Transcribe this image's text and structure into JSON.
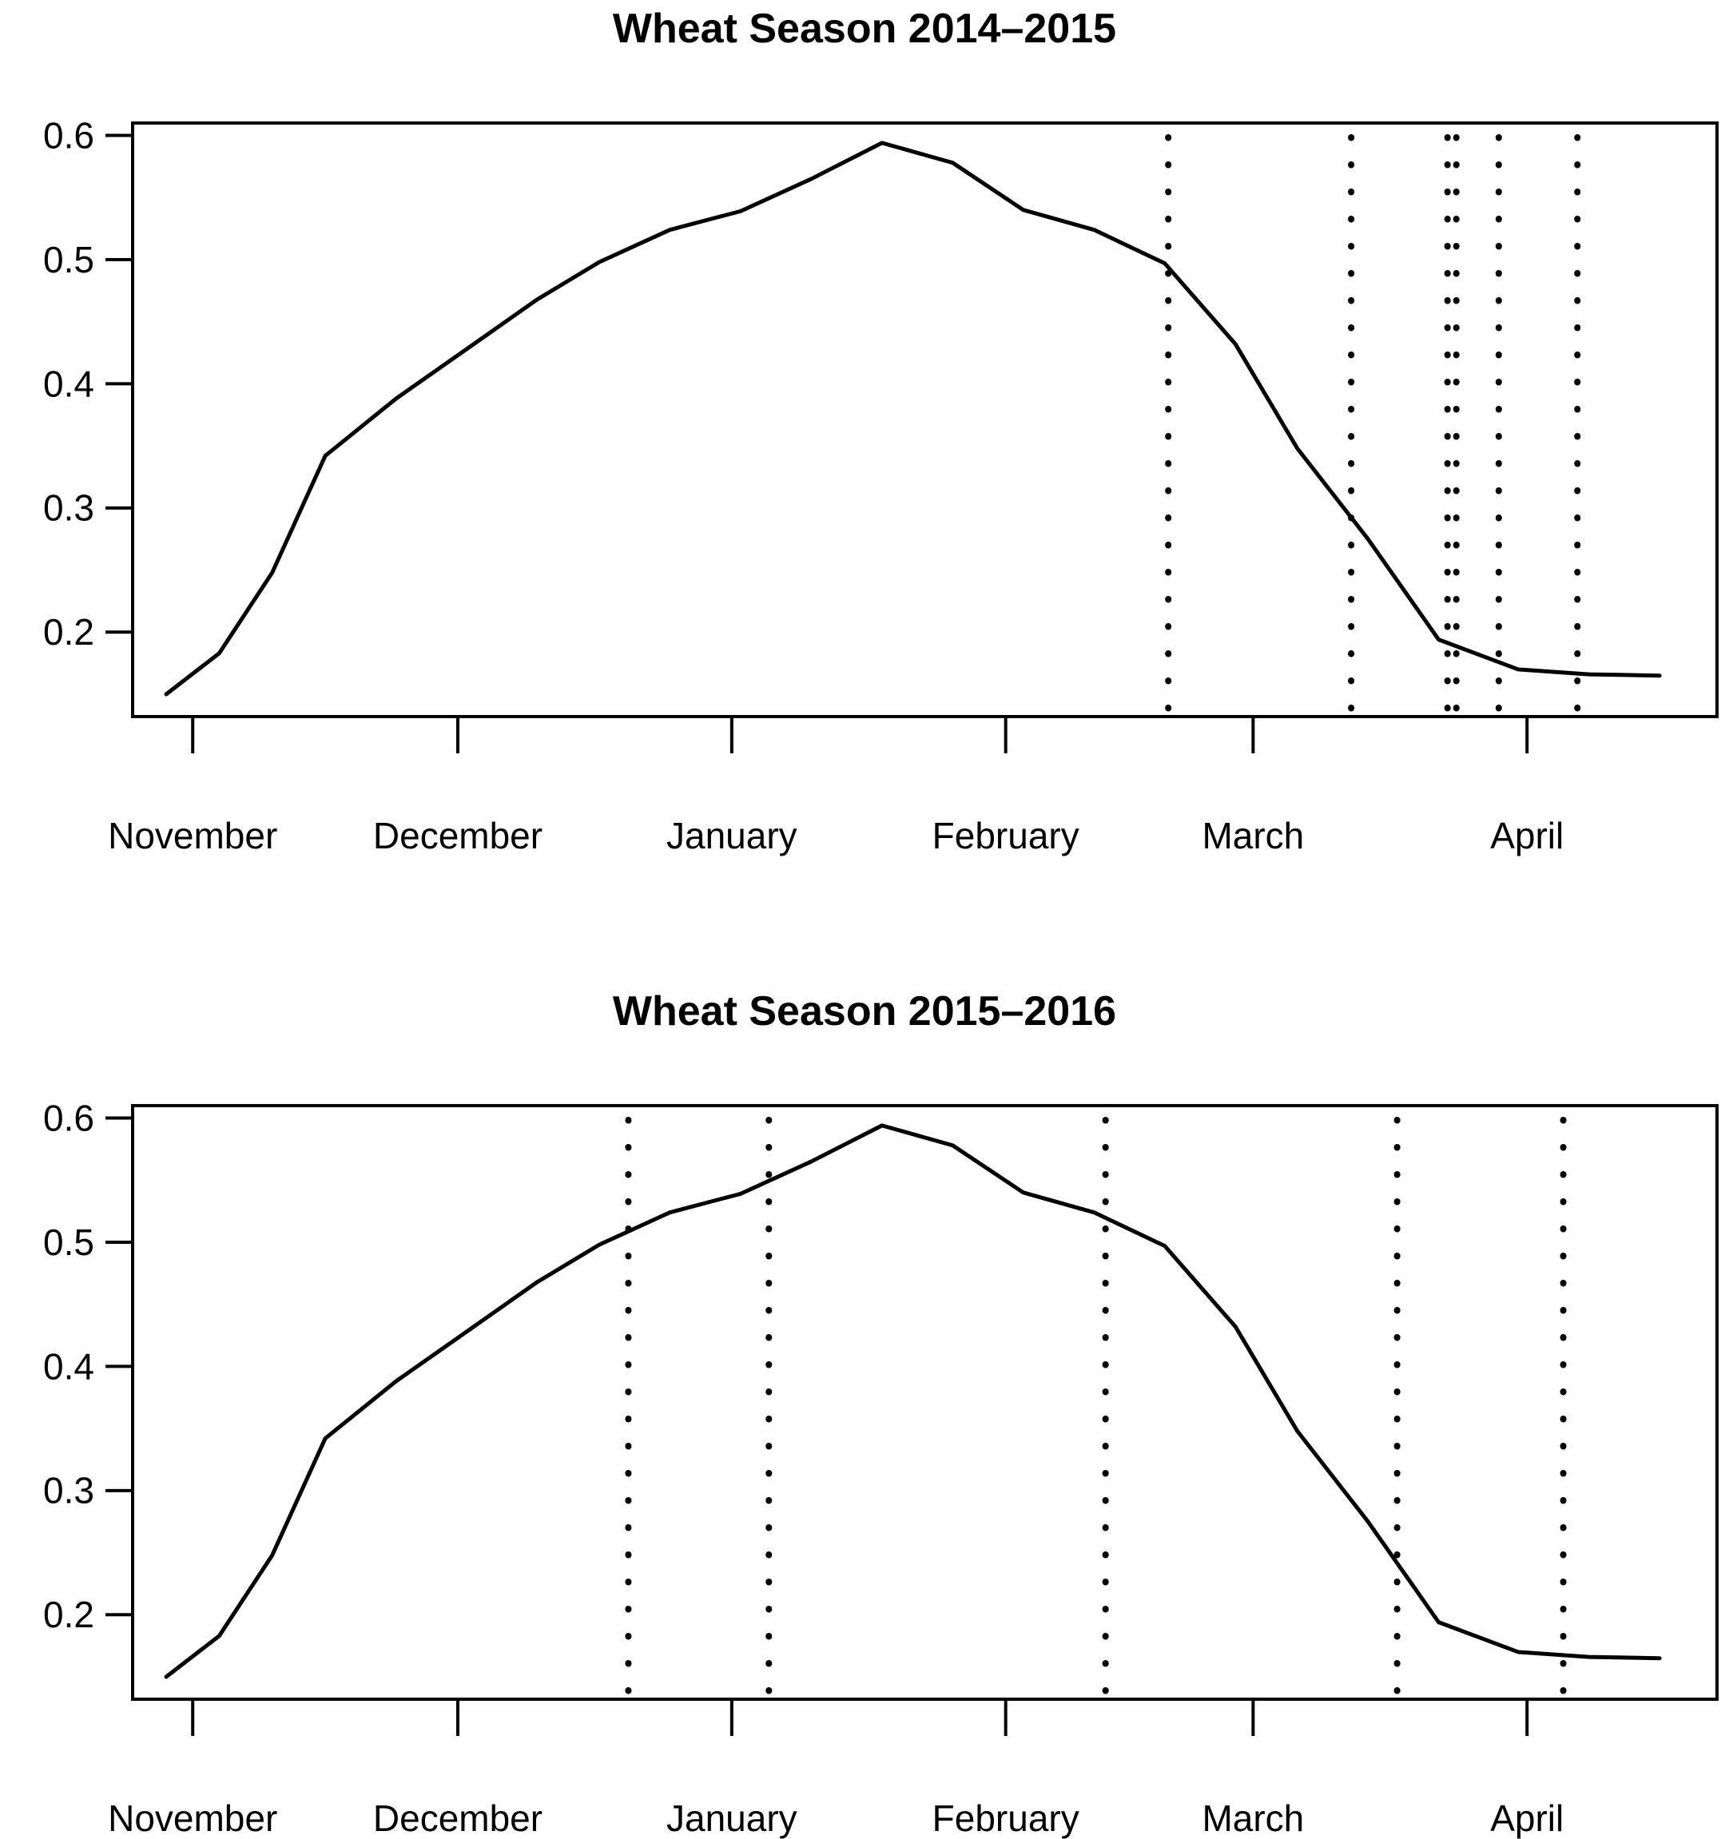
{
  "page": {
    "background": "#ffffff",
    "foreground": "#000000"
  },
  "chart_data": [
    {
      "type": "line",
      "title": "Wheat Season 2014–2015",
      "x_unit": "days_since_Nov_1",
      "x": [
        -3,
        3,
        9,
        15,
        23,
        31,
        39,
        46,
        54,
        62,
        70,
        78,
        86,
        94,
        102,
        110,
        118,
        125,
        133,
        141,
        150,
        158,
        166
      ],
      "values": [
        0.15,
        0.183,
        0.248,
        0.342,
        0.388,
        0.428,
        0.468,
        0.498,
        0.524,
        0.539,
        0.565,
        0.594,
        0.578,
        0.54,
        0.524,
        0.497,
        0.432,
        0.348,
        0.275,
        0.194,
        0.17,
        0.166,
        0.165
      ],
      "series_color": "#000000",
      "vline_days": [
        110.4,
        131.1,
        142.0,
        143.0,
        147.8,
        156.7
      ],
      "vline_style": "dotted",
      "vline_color": "#000000",
      "xtick_days": [
        0,
        30,
        61,
        92,
        120,
        151
      ],
      "xtick_labels": [
        "November",
        "December",
        "January",
        "February",
        "March",
        "April"
      ],
      "yticks": [
        0.2,
        0.3,
        0.4,
        0.5,
        0.6
      ],
      "ytick_labels": [
        "0.2",
        "0.3",
        "0.4",
        "0.5",
        "0.6"
      ],
      "xlim_days": [
        -6.8,
        172.5
      ],
      "ylim": [
        0.132,
        0.61
      ],
      "grid": false,
      "legend": null
    },
    {
      "type": "line",
      "title": "Wheat Season 2015–2016",
      "x_unit": "days_since_Nov_1",
      "x": [
        -3,
        3,
        9,
        15,
        23,
        31,
        39,
        46,
        54,
        62,
        70,
        78,
        86,
        94,
        102,
        110,
        118,
        125,
        133,
        141,
        150,
        158,
        166
      ],
      "values": [
        0.15,
        0.183,
        0.248,
        0.342,
        0.388,
        0.428,
        0.468,
        0.498,
        0.524,
        0.539,
        0.565,
        0.594,
        0.578,
        0.54,
        0.524,
        0.497,
        0.432,
        0.348,
        0.275,
        0.194,
        0.17,
        0.166,
        0.165
      ],
      "series_color": "#000000",
      "vline_days": [
        49.3,
        65.2,
        103.3,
        136.3,
        155.1
      ],
      "vline_style": "dotted",
      "vline_color": "#000000",
      "xtick_days": [
        0,
        30,
        61,
        92,
        120,
        151
      ],
      "xtick_labels": [
        "November",
        "December",
        "January",
        "February",
        "March",
        "April"
      ],
      "yticks": [
        0.2,
        0.3,
        0.4,
        0.5,
        0.6
      ],
      "ytick_labels": [
        "0.2",
        "0.3",
        "0.4",
        "0.5",
        "0.6"
      ],
      "xlim_days": [
        -6.8,
        172.5
      ],
      "ylim": [
        0.132,
        0.61
      ],
      "grid": false,
      "legend": null
    }
  ]
}
